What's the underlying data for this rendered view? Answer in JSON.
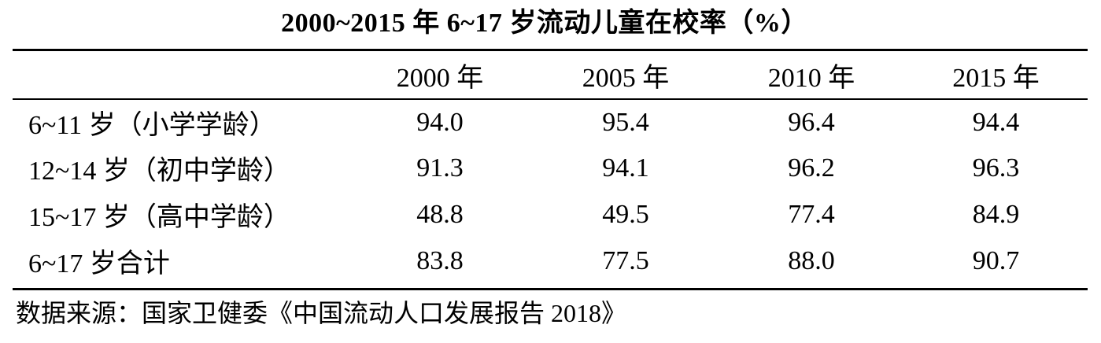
{
  "title": "2000~2015 年 6~17 岁流动儿童在校率（%）",
  "table": {
    "columns": [
      "",
      "2000 年",
      "2005 年",
      "2010 年",
      "2015 年"
    ],
    "rows": [
      {
        "label": "6~11 岁（小学学龄）",
        "values": [
          "94.0",
          "95.4",
          "96.4",
          "94.4"
        ]
      },
      {
        "label": "12~14 岁（初中学龄）",
        "values": [
          "91.3",
          "94.1",
          "96.2",
          "96.3"
        ]
      },
      {
        "label": "15~17 岁（高中学龄）",
        "values": [
          "48.8",
          "49.5",
          "77.4",
          "84.9"
        ]
      },
      {
        "label": "6~17 岁合计",
        "values": [
          "83.8",
          "77.5",
          "88.0",
          "90.7"
        ]
      }
    ]
  },
  "source": "数据来源：国家卫健委《中国流动人口发展报告 2018》"
}
